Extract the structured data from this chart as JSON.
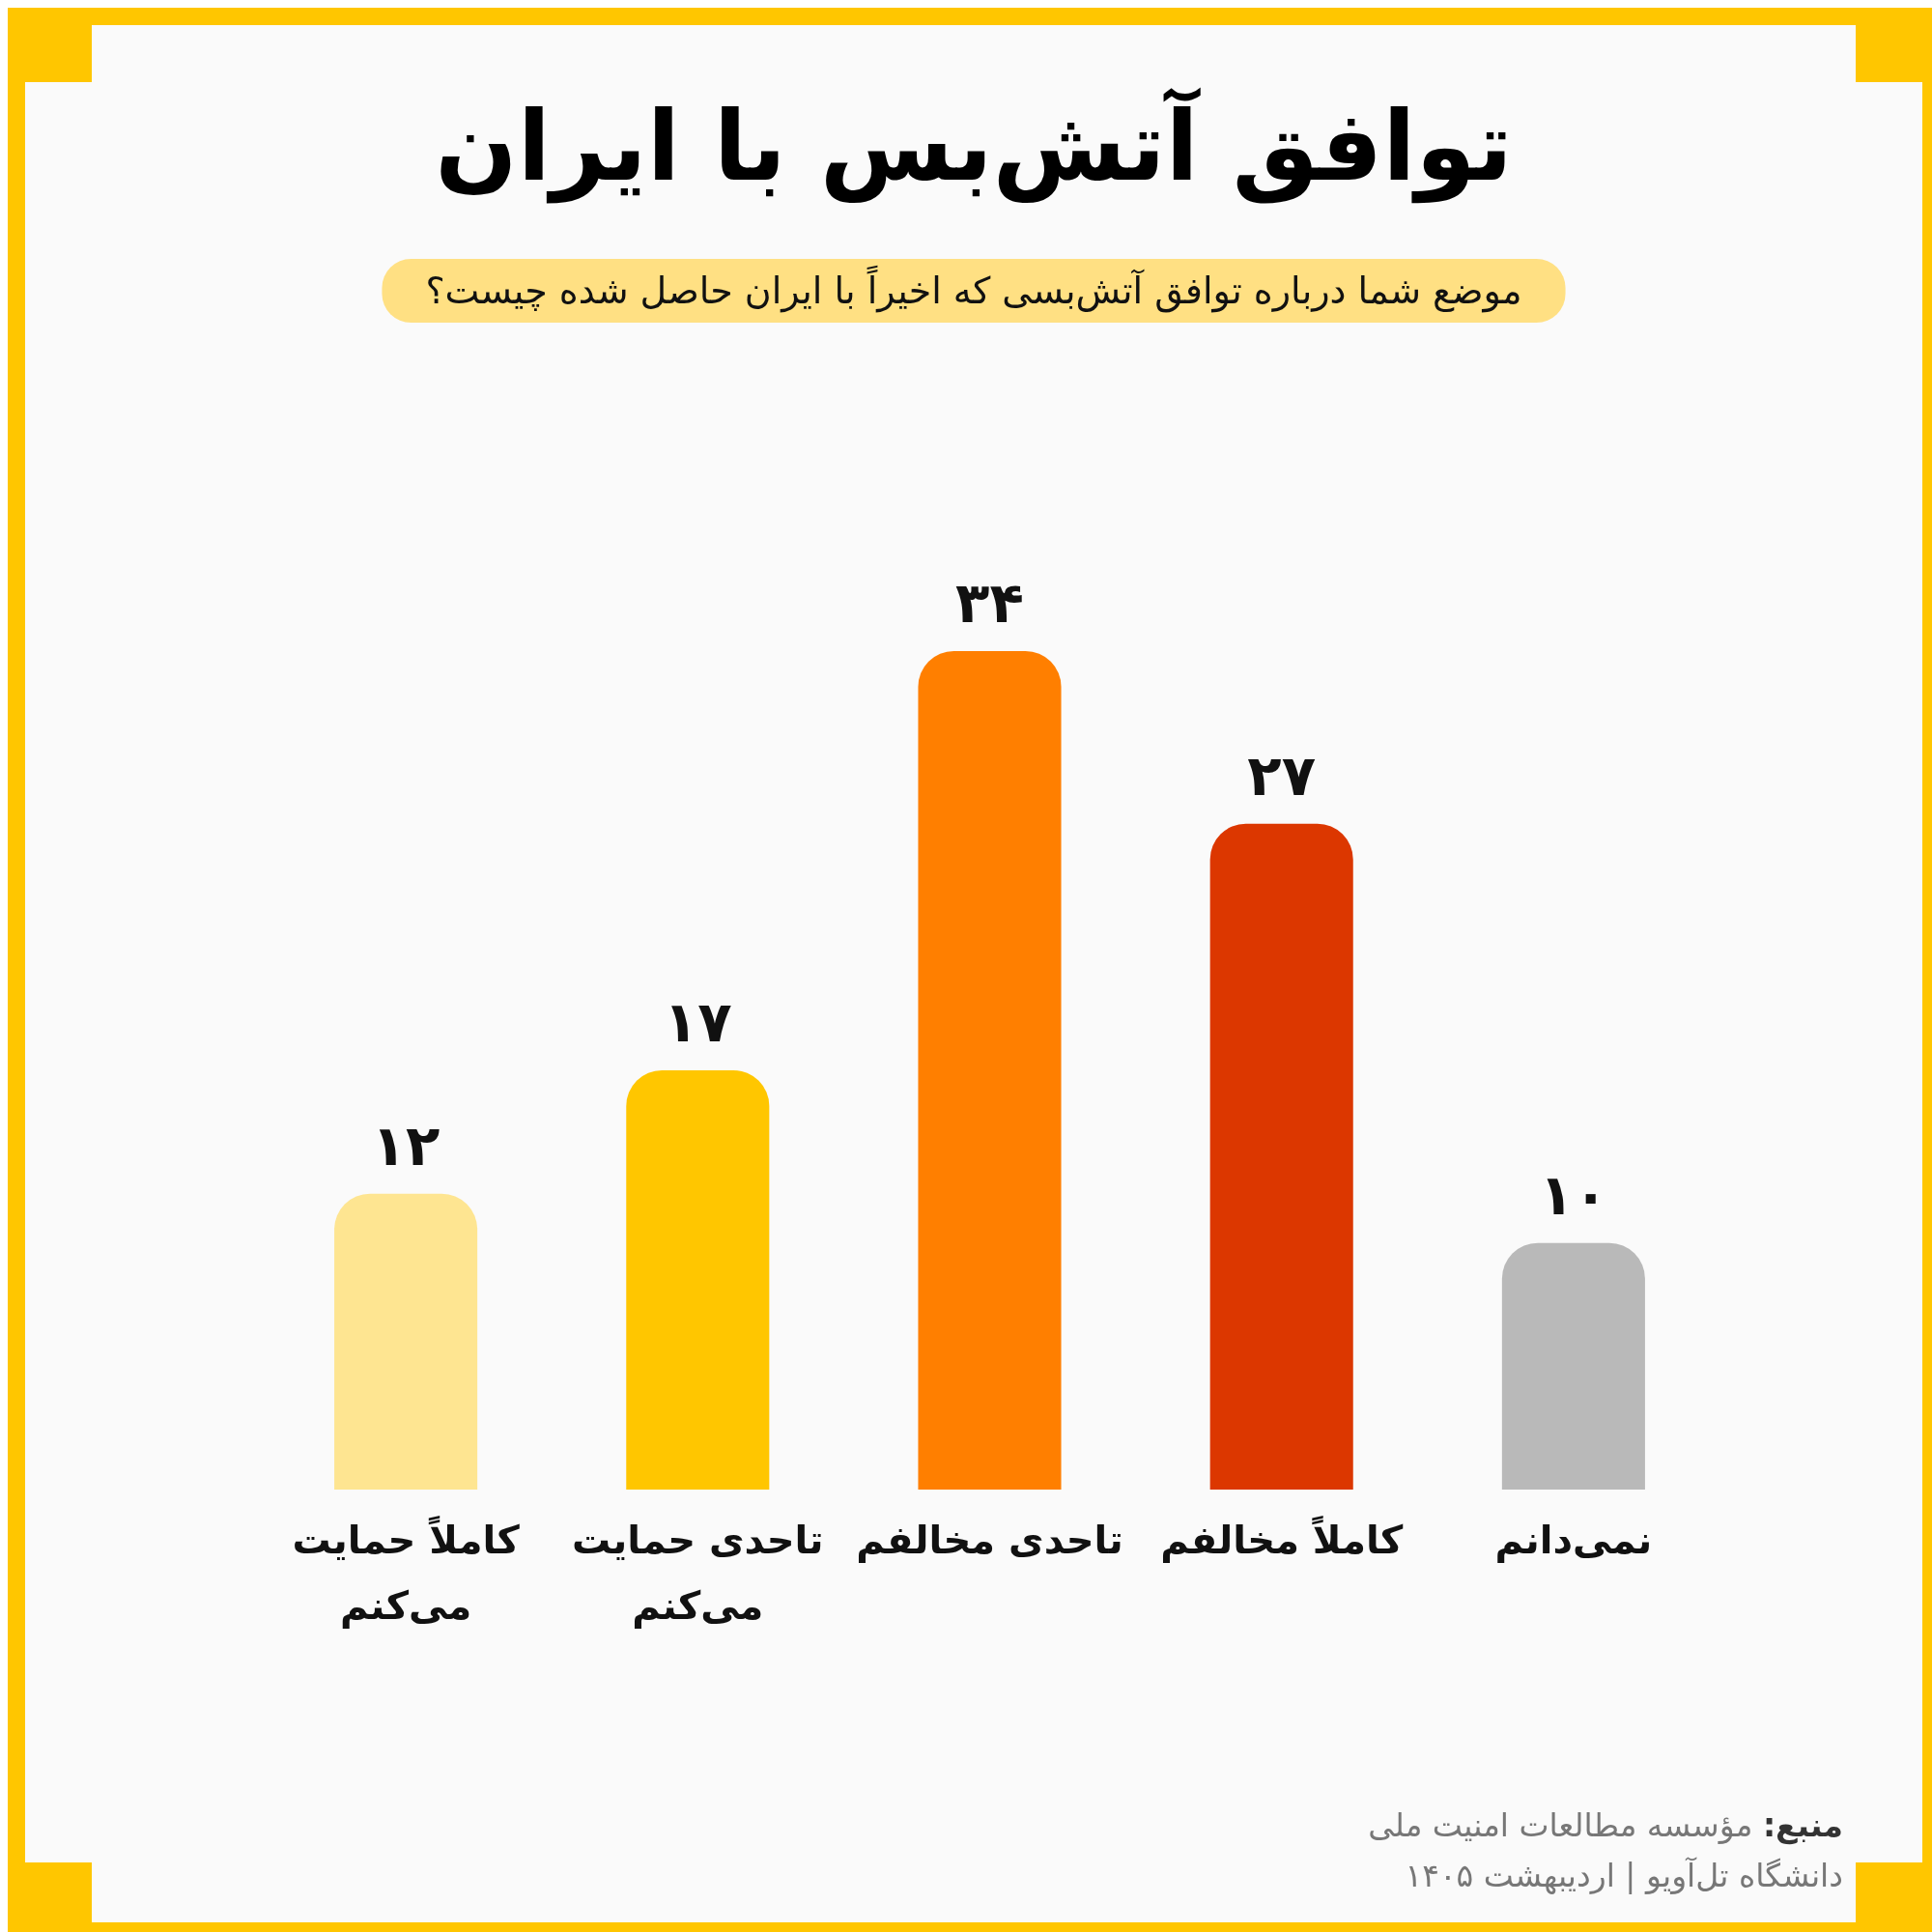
{
  "chart_data": {
    "type": "bar",
    "title": "توافق آتش‌بس با ایران",
    "subtitle": "موضع شما درباره توافق آتش‌بسی که اخیراً با ایران حاصل شده چیست؟",
    "categories": [
      "کاملاً حمایت می‌کنم",
      "تاحدی حمایت می‌کنم",
      "تاحدی مخالفم",
      "کاملاً مخالفم",
      "نمی‌دانم"
    ],
    "values": [
      12,
      17,
      34,
      27,
      10
    ],
    "value_labels": [
      "۱۲",
      "۱۷",
      "۳۴",
      "۲۷",
      "۱۰"
    ],
    "colors": [
      "#fee591",
      "#ffc600",
      "#ff7f00",
      "#dc3700",
      "#b9b9b9"
    ],
    "annotations": [
      "منبع: مؤسسه مطالعات امنیت ملی دانشگاه تل‌آویو | اردیبهشت ۱۴۰۵"
    ]
  }
}
